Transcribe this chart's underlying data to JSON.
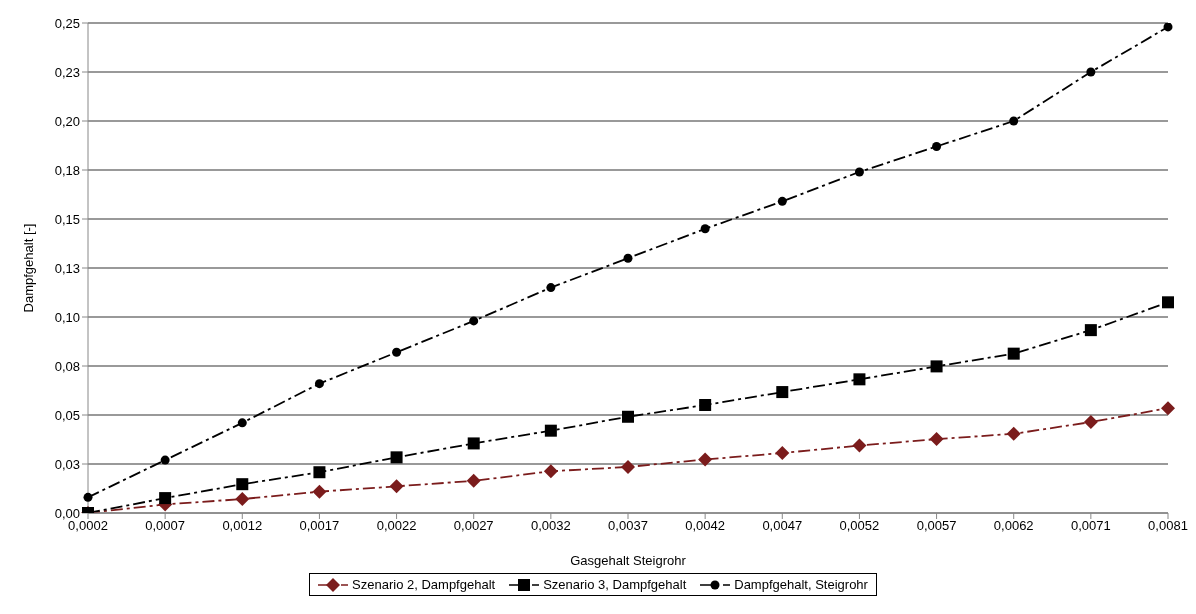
{
  "chart_data": {
    "type": "line",
    "xlabel": "Gasgehalt Steigrohr",
    "ylabel": "Dampfgehalt [-]",
    "categories": [
      "0,0002",
      "0,0007",
      "0,0012",
      "0,0017",
      "0,0022",
      "0,0027",
      "0,0032",
      "0,0037",
      "0,0042",
      "0,0047",
      "0,0052",
      "0,0057",
      "0,0062",
      "0,0071",
      "0,0081"
    ],
    "series": [
      {
        "name": "Szenario 2, Dampfgehalt",
        "color": "#7b1c1c",
        "marker": "diamond",
        "values": [
          0,
          0.0044,
          0.0071,
          0.0109,
          0.0136,
          0.0164,
          0.0213,
          0.0235,
          0.0273,
          0.0306,
          0.0344,
          0.0377,
          0.0404,
          0.0464,
          0.0535
        ]
      },
      {
        "name": "Szenario 3, Dampfgehalt",
        "color": "#000000",
        "marker": "square",
        "values": [
          0,
          0.0076,
          0.0147,
          0.0208,
          0.0284,
          0.0355,
          0.042,
          0.0491,
          0.0551,
          0.0617,
          0.0682,
          0.0748,
          0.0813,
          0.0933,
          0.1075
        ]
      },
      {
        "name": "Dampfgehalt, Steigrohr",
        "color": "#000000",
        "marker": "circle",
        "values": [
          0.008,
          0.027,
          0.046,
          0.066,
          0.082,
          0.098,
          0.115,
          0.13,
          0.145,
          0.159,
          0.174,
          0.187,
          0.2,
          0.225,
          0.248
        ]
      }
    ],
    "ylim": [
      0,
      0.25
    ],
    "yticks": [
      {
        "value": 0,
        "label": "0,00"
      },
      {
        "value": 0.025,
        "label": "0,03"
      },
      {
        "value": 0.05,
        "label": "0,05"
      },
      {
        "value": 0.075,
        "label": "0,08"
      },
      {
        "value": 0.1,
        "label": "0,10"
      },
      {
        "value": 0.125,
        "label": "0,13"
      },
      {
        "value": 0.15,
        "label": "0,15"
      },
      {
        "value": 0.175,
        "label": "0,18"
      },
      {
        "value": 0.2,
        "label": "0,20"
      },
      {
        "value": 0.225,
        "label": "0,23"
      },
      {
        "value": 0.25,
        "label": "0,25"
      }
    ],
    "grid": "y",
    "legend": "bottom",
    "line_style": "dashed"
  }
}
